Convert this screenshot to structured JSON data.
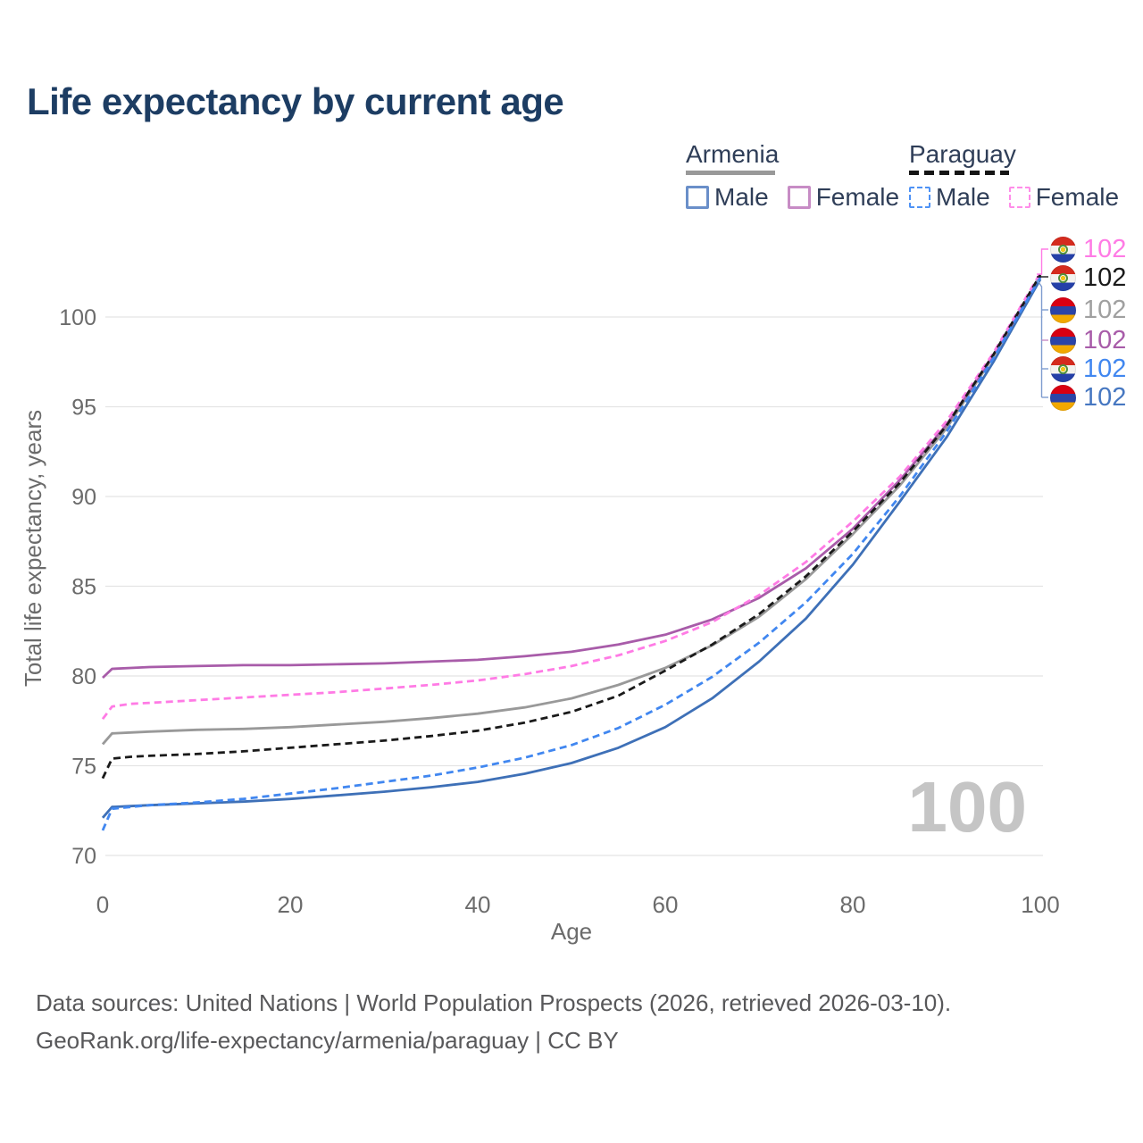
{
  "header": {
    "title": "Life expectancy by current age"
  },
  "legend": {
    "groups": [
      {
        "name": "Armenia",
        "line_style": "solid",
        "underline_color": "#999999",
        "items": [
          {
            "label": "Male",
            "box_color": "#6A8FC9"
          },
          {
            "label": "Female",
            "box_color": "#C78CC5"
          }
        ]
      },
      {
        "name": "Paraguay",
        "line_style": "dashed",
        "underline_color": "#151515",
        "items": [
          {
            "label": "Male",
            "box_color": "#4E92F5"
          },
          {
            "label": "Female",
            "box_color": "#FF8DE9"
          }
        ]
      }
    ]
  },
  "end_labels": {
    "rows": [
      {
        "country": "paraguay",
        "flag_icon": "paraguay-flag-icon",
        "value": "102",
        "color": "#FF7BE5"
      },
      {
        "country": "paraguay",
        "flag_icon": "paraguay-flag-icon",
        "value": "102",
        "color": "#1A1A1A"
      },
      {
        "country": "armenia",
        "flag_icon": "armenia-flag-icon",
        "value": "102",
        "color": "#A0A0A0"
      },
      {
        "country": "armenia",
        "flag_icon": "armenia-flag-icon",
        "value": "102",
        "color": "#A85CA9"
      },
      {
        "country": "paraguay",
        "flag_icon": "paraguay-flag-icon",
        "value": "102",
        "color": "#4187F0"
      },
      {
        "country": "armenia",
        "flag_icon": "armenia-flag-icon",
        "value": "102",
        "color": "#4677C1"
      }
    ]
  },
  "watermark": {
    "text": "100"
  },
  "footer": {
    "line1": "Data sources: United Nations | World Population Prospects (2026, retrieved 2026-03-10).",
    "line2": "GeoRank.org/life-expectancy/armenia/paraguay | CC BY"
  },
  "chart_data": {
    "type": "line",
    "title": "Life expectancy by current age",
    "xlabel": "Age",
    "ylabel": "Total life expectancy, years",
    "xlim": [
      0,
      100
    ],
    "ylim": [
      70,
      102.5
    ],
    "xticks": [
      0,
      20,
      40,
      60,
      80,
      100
    ],
    "yticks": [
      70,
      75,
      80,
      85,
      90,
      95,
      100
    ],
    "grid": "horizontal",
    "legend_position": "top-right",
    "x": [
      0,
      1,
      3,
      5,
      10,
      15,
      20,
      25,
      30,
      35,
      40,
      45,
      50,
      55,
      60,
      65,
      70,
      75,
      80,
      85,
      90,
      95,
      100
    ],
    "series": [
      {
        "id": "armenia-all",
        "name": "Armenia (all)",
        "country": "Armenia",
        "sex": "All",
        "color": "#999999",
        "dash": "solid",
        "values": [
          76.2,
          76.8,
          76.85,
          76.9,
          77.0,
          77.05,
          77.15,
          77.3,
          77.45,
          77.65,
          77.9,
          78.25,
          78.75,
          79.5,
          80.45,
          81.7,
          83.3,
          85.4,
          87.9,
          90.6,
          93.8,
          97.8,
          102.3
        ]
      },
      {
        "id": "armenia-female",
        "name": "Armenia Female",
        "country": "Armenia",
        "sex": "Female",
        "color": "#A85CA9",
        "dash": "solid",
        "values": [
          79.9,
          80.4,
          80.45,
          80.5,
          80.55,
          80.6,
          80.6,
          80.65,
          80.7,
          80.8,
          80.9,
          81.1,
          81.35,
          81.75,
          82.3,
          83.15,
          84.35,
          86.0,
          88.2,
          90.9,
          94.0,
          97.9,
          102.25
        ]
      },
      {
        "id": "paraguay-female",
        "name": "Paraguay Female",
        "country": "Paraguay",
        "sex": "Female",
        "color": "#FF7BE5",
        "dash": "dashed",
        "values": [
          77.6,
          78.3,
          78.45,
          78.5,
          78.65,
          78.8,
          78.95,
          79.1,
          79.3,
          79.5,
          79.75,
          80.1,
          80.55,
          81.15,
          81.95,
          83.0,
          84.5,
          86.35,
          88.6,
          91.1,
          94.2,
          98.0,
          102.45
        ]
      },
      {
        "id": "paraguay-all",
        "name": "Paraguay (all)",
        "country": "Paraguay",
        "sex": "All",
        "color": "#1A1A1A",
        "dash": "dashed",
        "values": [
          74.3,
          75.4,
          75.5,
          75.55,
          75.65,
          75.8,
          76.0,
          76.2,
          76.4,
          76.65,
          76.95,
          77.4,
          78.0,
          78.9,
          80.3,
          81.75,
          83.45,
          85.55,
          88.05,
          90.75,
          93.95,
          97.9,
          102.35
        ]
      },
      {
        "id": "armenia-male",
        "name": "Armenia Male",
        "country": "Armenia",
        "sex": "Male",
        "color": "#3E70B7",
        "dash": "solid",
        "values": [
          72.1,
          72.7,
          72.75,
          72.8,
          72.9,
          73.0,
          73.15,
          73.35,
          73.55,
          73.8,
          74.1,
          74.55,
          75.15,
          76.0,
          77.15,
          78.75,
          80.8,
          83.2,
          86.2,
          89.7,
          93.3,
          97.5,
          102.1
        ]
      },
      {
        "id": "paraguay-male",
        "name": "Paraguay Male",
        "country": "Paraguay",
        "sex": "Male",
        "color": "#4187F0",
        "dash": "dashed",
        "values": [
          71.4,
          72.6,
          72.7,
          72.8,
          72.95,
          73.15,
          73.45,
          73.75,
          74.1,
          74.45,
          74.9,
          75.45,
          76.15,
          77.1,
          78.4,
          79.95,
          81.85,
          84.1,
          86.8,
          90.0,
          93.6,
          97.7,
          102.2
        ]
      }
    ],
    "end_value_label": "102",
    "annotations": {
      "age_counter": "100"
    }
  }
}
